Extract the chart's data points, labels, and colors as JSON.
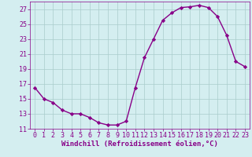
{
  "x": [
    0,
    1,
    2,
    3,
    4,
    5,
    6,
    7,
    8,
    9,
    10,
    11,
    12,
    13,
    14,
    15,
    16,
    17,
    18,
    19,
    20,
    21,
    22,
    23
  ],
  "y": [
    16.5,
    15.0,
    14.5,
    13.5,
    13.0,
    13.0,
    12.5,
    11.8,
    11.5,
    11.5,
    12.0,
    16.5,
    20.5,
    23.0,
    25.5,
    26.5,
    27.2,
    27.3,
    27.5,
    27.2,
    26.0,
    23.5,
    20.0,
    19.3
  ],
  "line_color": "#880088",
  "marker": "D",
  "marker_size": 2.2,
  "bg_color": "#d4eef0",
  "grid_color": "#aacccc",
  "xlabel": "Windchill (Refroidissement éolien,°C)",
  "ylim": [
    11,
    28
  ],
  "xlim": [
    -0.5,
    23.5
  ],
  "yticks": [
    11,
    13,
    15,
    17,
    19,
    21,
    23,
    25,
    27
  ],
  "xticks": [
    0,
    1,
    2,
    3,
    4,
    5,
    6,
    7,
    8,
    9,
    10,
    11,
    12,
    13,
    14,
    15,
    16,
    17,
    18,
    19,
    20,
    21,
    22,
    23
  ],
  "label_fontsize": 6.5,
  "tick_fontsize": 6.0,
  "line_width": 1.0
}
